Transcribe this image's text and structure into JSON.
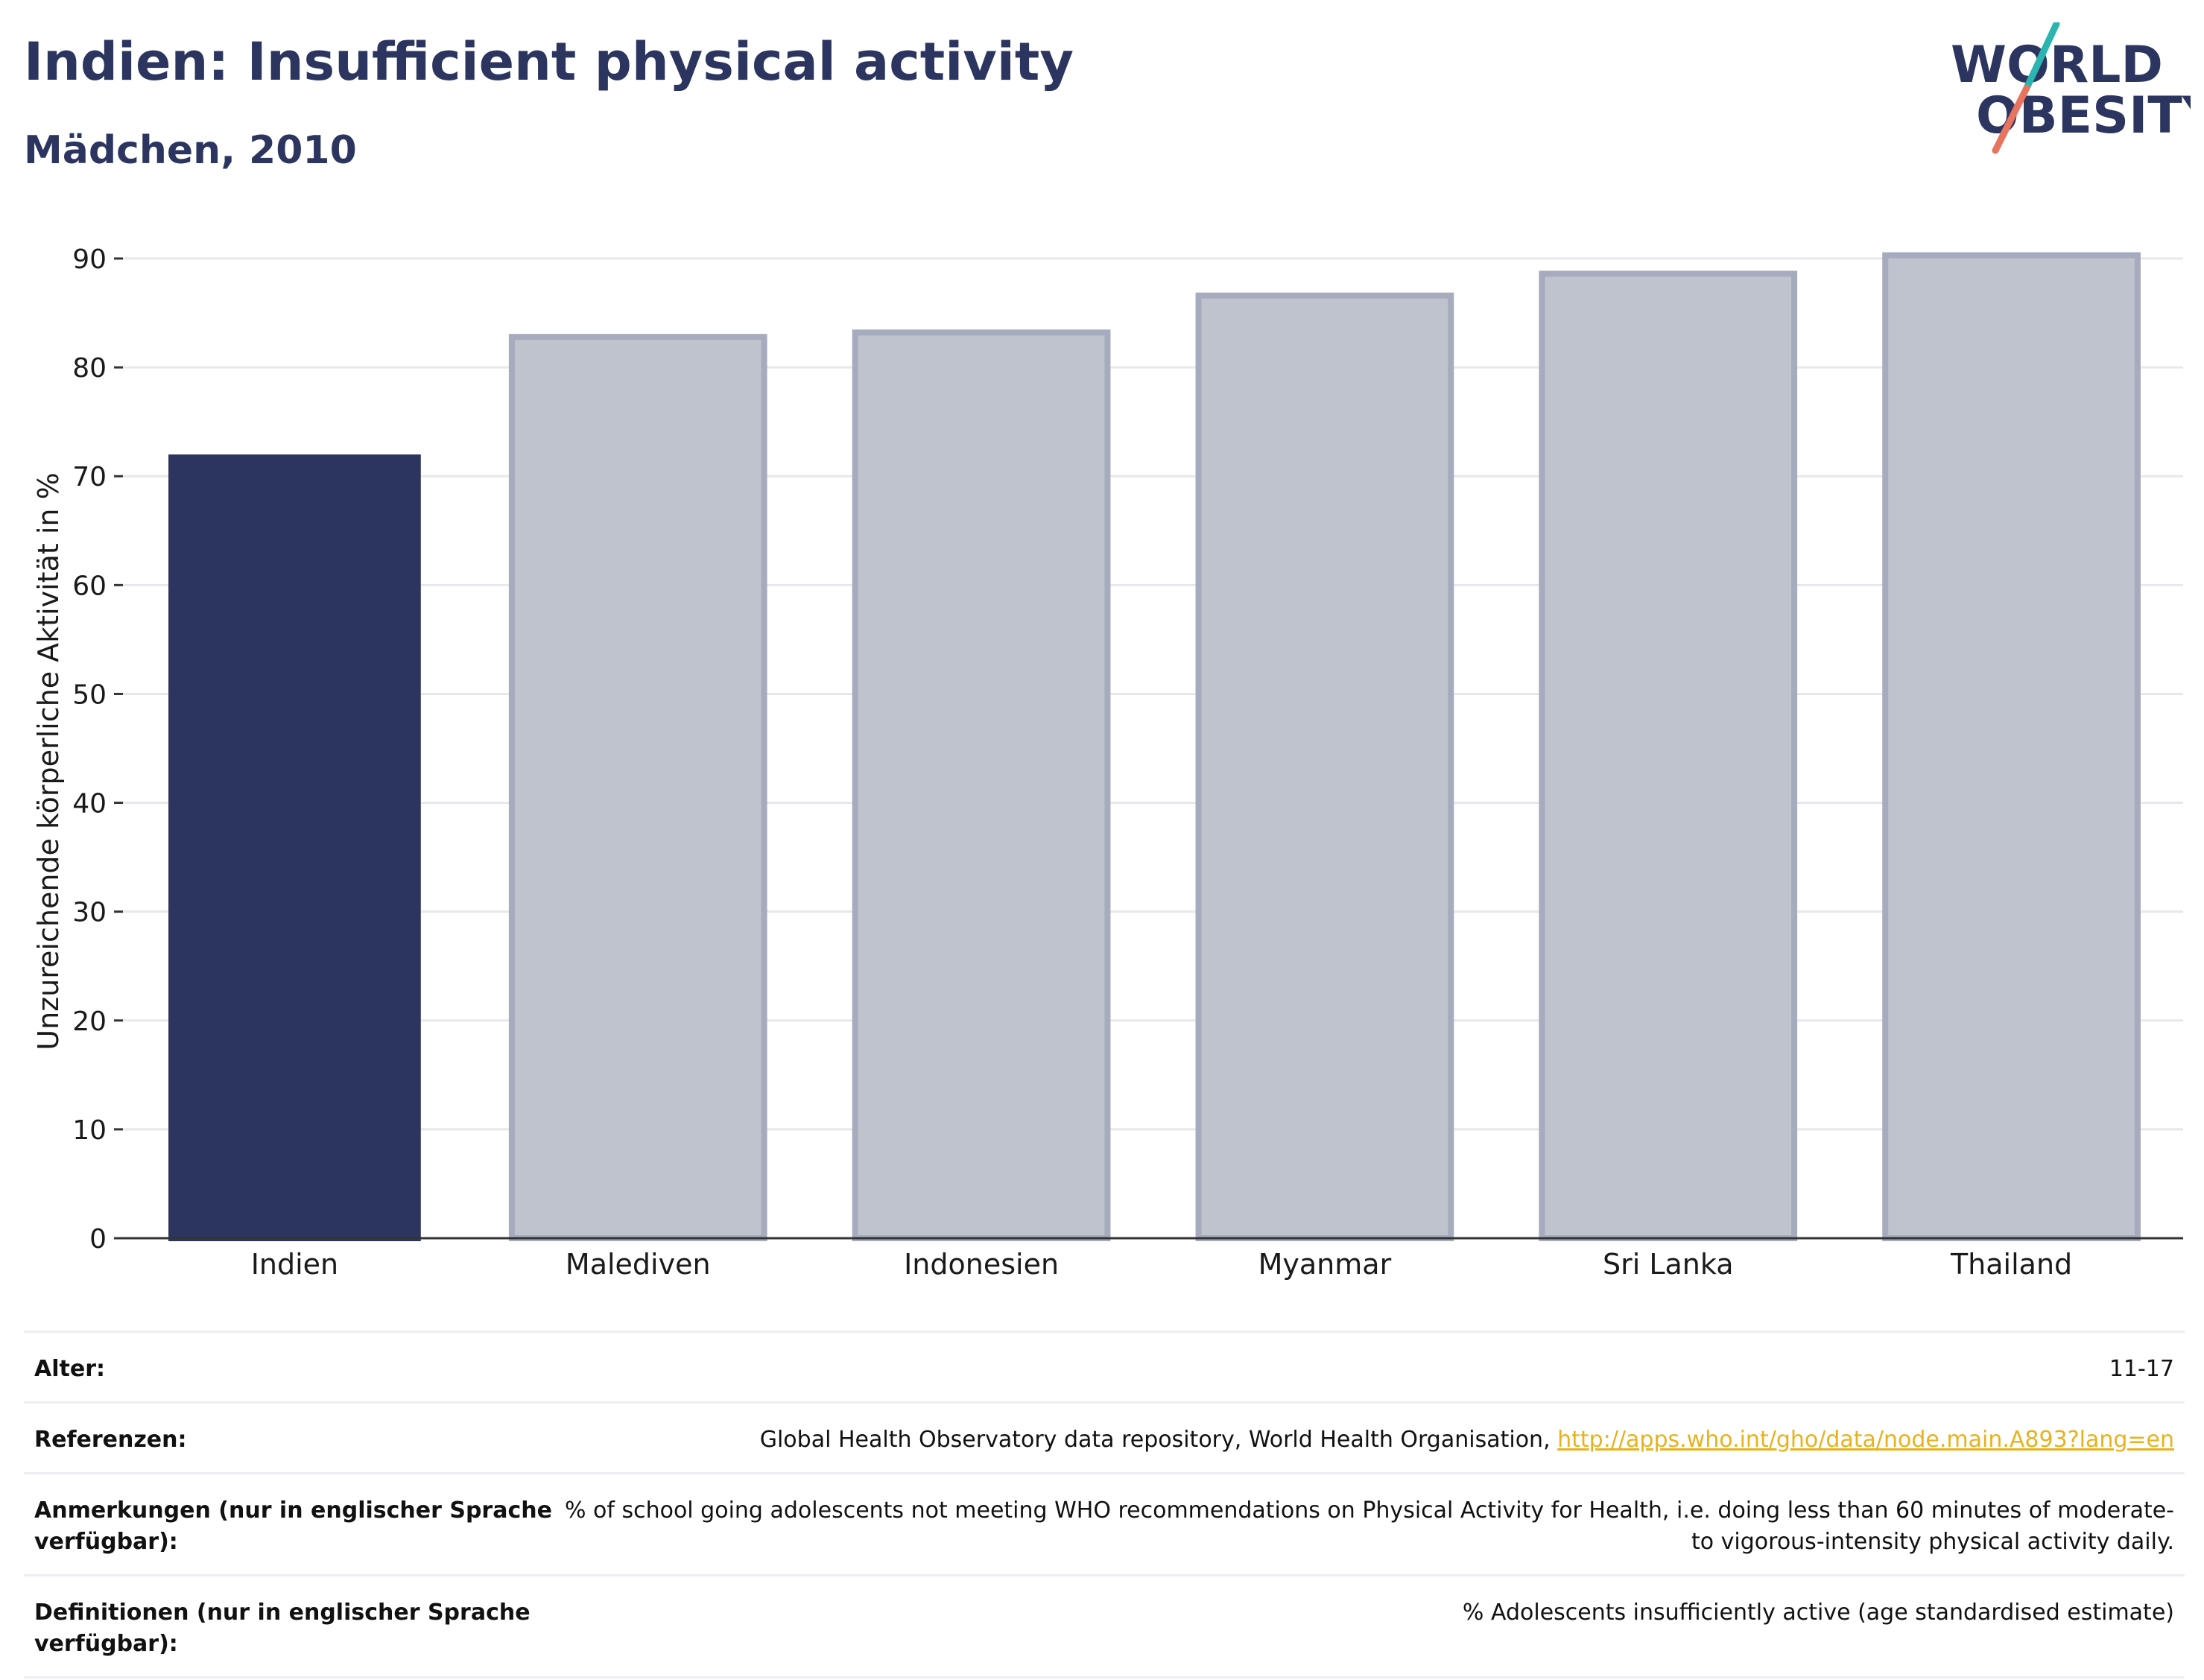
{
  "header": {
    "title": "Indien: Insufficient physical activity",
    "subtitle": "Mädchen, 2010",
    "logo_line1": "WORLD",
    "logo_line2": "OBESITY"
  },
  "colors": {
    "highlight": "#2c3560",
    "other": "#bfc3ce",
    "other_stroke": "#a6abbd",
    "logo_teal": "#2bb5b0",
    "logo_coral": "#e8735f",
    "link": "#e8b21e"
  },
  "chart_data": {
    "type": "bar",
    "title": "Indien: Insufficient physical activity",
    "subtitle": "Mädchen, 2010",
    "categories": [
      "Indien",
      "Malediven",
      "Indonesien",
      "Myanmar",
      "Sri Lanka",
      "Thailand"
    ],
    "values": [
      72.0,
      82.8,
      83.2,
      86.6,
      88.6,
      90.3
    ],
    "highlight": "Indien",
    "xlabel": "",
    "ylabel": "Unzureichende körperliche Aktivität in %",
    "ylim": [
      0,
      90
    ],
    "yticks": [
      0,
      10,
      20,
      30,
      40,
      50,
      60,
      70,
      80,
      90
    ],
    "grid": true,
    "legend": "none"
  },
  "meta": [
    {
      "label": "Alter:",
      "value": "11-17"
    },
    {
      "label": "Referenzen:",
      "value": "Global Health Observatory data repository, World Health Organisation, ",
      "link": "http://apps.who.int/gho/data/node.main.A893?lang=en"
    },
    {
      "label": "Anmerkungen (nur in englischer Sprache verfügbar):",
      "value": "% of school going adolescents not meeting WHO recommendations on Physical Activity for Health, i.e. doing less than 60 minutes of moderate- to vigorous-intensity physical activity daily."
    },
    {
      "label": "Definitionen (nur in englischer Sprache verfügbar):",
      "value": "% Adolescents insufficiently active (age standardised estimate)"
    }
  ]
}
